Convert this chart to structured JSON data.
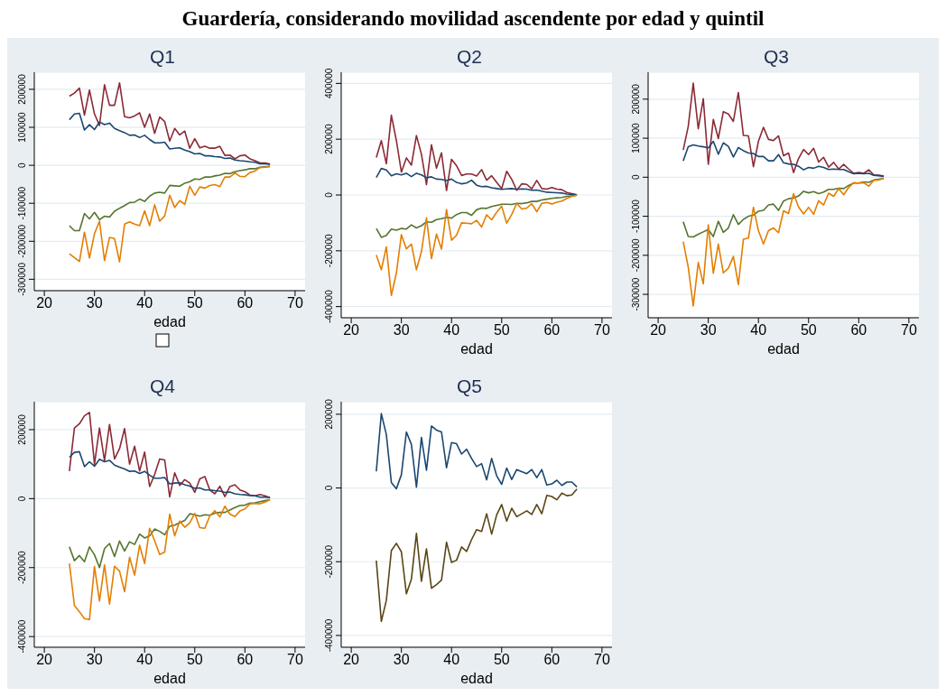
{
  "chart_data": [
    {
      "type": "line",
      "title": "Q1",
      "xlabel": "edad",
      "annotations": [
        "Guardería, considerando movilidad ascendente por edad y quintil"
      ],
      "x": [
        25,
        26,
        27,
        28,
        29,
        30,
        31,
        32,
        33,
        34,
        35,
        36,
        37,
        38,
        39,
        40,
        41,
        42,
        43,
        44,
        45,
        46,
        47,
        48,
        49,
        50,
        51,
        52,
        53,
        54,
        55,
        56,
        57,
        58,
        59,
        60,
        61,
        62,
        63,
        64,
        65
      ],
      "xlim": [
        18,
        72
      ],
      "xticks": [
        20,
        30,
        40,
        50,
        60,
        70
      ],
      "ylim": [
        -330000,
        245000
      ],
      "yticks": [
        -300000,
        -200000,
        -100000,
        0,
        100000,
        200000
      ],
      "grid": "y",
      "series": [
        {
          "color": "#8b2a35",
          "values": [
            182000,
            190000,
            203000,
            132000,
            198000,
            135000,
            105000,
            212000,
            158000,
            158000,
            217000,
            128000,
            125000,
            130000,
            138000,
            100000,
            135000,
            84000,
            127000,
            115000,
            64000,
            97000,
            80000,
            90000,
            45000,
            70000,
            46000,
            50000,
            45000,
            45000,
            50000,
            26000,
            27000,
            17000,
            25000,
            27000,
            17000,
            12000,
            6000,
            6000,
            3000
          ]
        },
        {
          "color": "#1a476f",
          "values": [
            120000,
            135000,
            137000,
            93000,
            107000,
            94000,
            114000,
            107000,
            111000,
            97000,
            91000,
            86000,
            79000,
            80000,
            73000,
            79000,
            68000,
            59000,
            59000,
            61000,
            43000,
            45000,
            46000,
            40000,
            36000,
            30000,
            31000,
            25000,
            25000,
            23000,
            22000,
            18000,
            19000,
            14000,
            12000,
            11000,
            9000,
            8000,
            4000,
            4000,
            3000
          ]
        },
        {
          "color": "#55752f",
          "values": [
            -159000,
            -172000,
            -172000,
            -127000,
            -141000,
            -124000,
            -143000,
            -134000,
            -136000,
            -121000,
            -113000,
            -106000,
            -98000,
            -97000,
            -89000,
            -95000,
            -81000,
            -73000,
            -71000,
            -73000,
            -53000,
            -54000,
            -55000,
            -47000,
            -43000,
            -36000,
            -37000,
            -31000,
            -31000,
            -28000,
            -26000,
            -21000,
            -22000,
            -17000,
            -14000,
            -12000,
            -9000,
            -9000,
            -5000,
            -4000,
            -3000
          ]
        },
        {
          "color": "#e37e00",
          "values": [
            -233000,
            -243000,
            -253000,
            -176000,
            -244000,
            -180000,
            -147000,
            -251000,
            -190000,
            -193000,
            -254000,
            -155000,
            -149000,
            -155000,
            -159000,
            -120000,
            -159000,
            -104000,
            -147000,
            -133000,
            -79000,
            -111000,
            -93000,
            -103000,
            -55000,
            -79000,
            -57000,
            -60000,
            -53000,
            -51000,
            -56000,
            -31000,
            -31000,
            -20000,
            -29000,
            -30000,
            -19000,
            -15000,
            -6000,
            -5000,
            -3000
          ]
        }
      ]
    },
    {
      "type": "line",
      "title": "Q2",
      "xlabel": "edad",
      "x": [
        25,
        26,
        27,
        28,
        29,
        30,
        31,
        32,
        33,
        34,
        35,
        36,
        37,
        38,
        39,
        40,
        41,
        42,
        43,
        44,
        45,
        46,
        47,
        48,
        49,
        50,
        51,
        52,
        53,
        54,
        55,
        56,
        57,
        58,
        59,
        60,
        61,
        62,
        63,
        64,
        65
      ],
      "xlim": [
        18,
        72
      ],
      "xticks": [
        20,
        30,
        40,
        50,
        60,
        70
      ],
      "ylim": [
        -440000,
        440000
      ],
      "yticks": [
        -400000,
        -200000,
        0,
        200000,
        400000
      ],
      "grid": "y",
      "series": [
        {
          "color": "#8b2a35",
          "values": [
            134000,
            195000,
            112000,
            286000,
            195000,
            82000,
            133000,
            107000,
            213000,
            146000,
            37000,
            180000,
            96000,
            151000,
            16000,
            128000,
            105000,
            70000,
            75000,
            75000,
            68000,
            91000,
            53000,
            69000,
            45000,
            23000,
            85000,
            56000,
            17000,
            40000,
            38000,
            22000,
            52000,
            23000,
            21000,
            27000,
            21000,
            19000,
            9000,
            5000,
            1000
          ]
        },
        {
          "color": "#1a476f",
          "values": [
            63000,
            95000,
            90000,
            69000,
            76000,
            72000,
            78000,
            66000,
            78000,
            72000,
            62000,
            65000,
            57000,
            56000,
            52000,
            57000,
            45000,
            40000,
            43000,
            53000,
            35000,
            30000,
            31000,
            26000,
            23000,
            20000,
            22000,
            23000,
            20000,
            22000,
            21000,
            17000,
            18000,
            14000,
            10000,
            9000,
            8000,
            7000,
            3000,
            2000,
            1000
          ]
        },
        {
          "color": "#55752f",
          "values": [
            -120000,
            -152000,
            -145000,
            -122000,
            -126000,
            -120000,
            -122000,
            -107000,
            -118000,
            -110000,
            -96000,
            -98000,
            -88000,
            -85000,
            -80000,
            -83000,
            -70000,
            -63000,
            -63000,
            -73000,
            -53000,
            -47000,
            -48000,
            -41000,
            -37000,
            -33000,
            -33000,
            -34000,
            -30000,
            -31000,
            -28000,
            -23000,
            -23000,
            -18000,
            -15000,
            -12000,
            -10000,
            -9000,
            -5000,
            -3000,
            -1000
          ]
        },
        {
          "color": "#e37e00",
          "values": [
            -215000,
            -268000,
            -186000,
            -360000,
            -280000,
            -142000,
            -193000,
            -176000,
            -268000,
            -203000,
            -82000,
            -228000,
            -140000,
            -194000,
            -52000,
            -162000,
            -144000,
            -100000,
            -101000,
            -103000,
            -91000,
            -115000,
            -71000,
            -89000,
            -62000,
            -40000,
            -101000,
            -70000,
            -30000,
            -50000,
            -47000,
            -31000,
            -60000,
            -30000,
            -27000,
            -32000,
            -26000,
            -22000,
            -12000,
            -5000,
            -1000
          ]
        }
      ]
    },
    {
      "type": "line",
      "title": "Q3",
      "xlabel": "edad",
      "x": [
        25,
        26,
        27,
        28,
        29,
        30,
        31,
        32,
        33,
        34,
        35,
        36,
        37,
        38,
        39,
        40,
        41,
        42,
        43,
        44,
        45,
        46,
        47,
        48,
        49,
        50,
        51,
        52,
        53,
        54,
        55,
        56,
        57,
        58,
        59,
        60,
        61,
        62,
        63,
        64,
        65
      ],
      "xlim": [
        18,
        72
      ],
      "xticks": [
        20,
        30,
        40,
        50,
        60,
        70
      ],
      "ylim": [
        -360000,
        269000
      ],
      "yticks": [
        -300000,
        -200000,
        -100000,
        0,
        100000,
        200000
      ],
      "grid": "y",
      "series": [
        {
          "color": "#8b2a35",
          "values": [
            70000,
            130000,
            241000,
            124000,
            201000,
            33000,
            148000,
            99000,
            168000,
            162000,
            143000,
            217000,
            107000,
            106000,
            27000,
            92000,
            128000,
            97000,
            94000,
            106000,
            55000,
            62000,
            12000,
            48000,
            71000,
            58000,
            74000,
            39000,
            51000,
            26000,
            38000,
            21000,
            33000,
            21000,
            10000,
            12000,
            10000,
            19000,
            6000,
            5000,
            3000
          ]
        },
        {
          "color": "#1a476f",
          "values": [
            42000,
            78000,
            83000,
            80000,
            78000,
            75000,
            92000,
            59000,
            88000,
            79000,
            52000,
            76000,
            68000,
            62000,
            61000,
            53000,
            53000,
            42000,
            42000,
            58000,
            37000,
            34000,
            33000,
            28000,
            19000,
            25000,
            23000,
            28000,
            25000,
            20000,
            21000,
            20000,
            20000,
            14000,
            9000,
            10000,
            9000,
            10000,
            5000,
            4000,
            2000
          ]
        },
        {
          "color": "#55752f",
          "values": [
            -114000,
            -152000,
            -153000,
            -146000,
            -140000,
            -134000,
            -152000,
            -113000,
            -141000,
            -130000,
            -96000,
            -121000,
            -108000,
            -100000,
            -97000,
            -87000,
            -85000,
            -71000,
            -69000,
            -85000,
            -61000,
            -55000,
            -53000,
            -48000,
            -36000,
            -40000,
            -37000,
            -42000,
            -38000,
            -31000,
            -31000,
            -28000,
            -29000,
            -21000,
            -15000,
            -15000,
            -12000,
            -13000,
            -7000,
            -5000,
            -3000
          ]
        },
        {
          "color": "#e37e00",
          "values": [
            -165000,
            -230000,
            -330000,
            -218000,
            -273000,
            -122000,
            -246000,
            -171000,
            -245000,
            -233000,
            -203000,
            -275000,
            -159000,
            -156000,
            -77000,
            -137000,
            -171000,
            -137000,
            -130000,
            -142000,
            -86000,
            -93000,
            -42000,
            -76000,
            -94000,
            -77000,
            -95000,
            -60000,
            -71000,
            -41000,
            -49000,
            -29000,
            -45000,
            -26000,
            -14000,
            -15000,
            -14000,
            -23000,
            -8000,
            -7000,
            -3000
          ]
        }
      ]
    },
    {
      "type": "line",
      "title": "Q4",
      "xlabel": "edad",
      "x": [
        25,
        26,
        27,
        28,
        29,
        30,
        31,
        32,
        33,
        34,
        35,
        36,
        37,
        38,
        39,
        40,
        41,
        42,
        43,
        44,
        45,
        46,
        47,
        48,
        49,
        50,
        51,
        52,
        53,
        54,
        55,
        56,
        57,
        58,
        59,
        60,
        61,
        62,
        63,
        64,
        65
      ],
      "xlim": [
        18,
        72
      ],
      "xticks": [
        20,
        30,
        40,
        50,
        60,
        70
      ],
      "ylim": [
        -431000,
        281000
      ],
      "yticks": [
        -400000,
        -200000,
        0,
        200000
      ],
      "grid": "y",
      "series": [
        {
          "color": "#8b2a35",
          "values": [
            80000,
            205000,
            217000,
            240000,
            250000,
            100000,
            205000,
            110000,
            215000,
            115000,
            145000,
            203000,
            100000,
            152000,
            80000,
            135000,
            35000,
            70000,
            115000,
            112000,
            5000,
            75000,
            38000,
            55000,
            45000,
            18000,
            57000,
            64000,
            25000,
            14000,
            36000,
            6000,
            35000,
            40000,
            25000,
            20000,
            10000,
            8000,
            12000,
            8000,
            3000
          ]
        },
        {
          "color": "#1a476f",
          "values": [
            120000,
            134000,
            136000,
            93000,
            107000,
            94000,
            114000,
            107000,
            111000,
            97000,
            91000,
            86000,
            79000,
            80000,
            73000,
            79000,
            68000,
            59000,
            59000,
            61000,
            43000,
            45000,
            46000,
            40000,
            36000,
            30000,
            31000,
            25000,
            25000,
            23000,
            22000,
            18000,
            19000,
            14000,
            12000,
            11000,
            9000,
            8000,
            4000,
            4000,
            3000
          ]
        },
        {
          "color": "#55752f",
          "values": [
            -140000,
            -180000,
            -165000,
            -183000,
            -140000,
            -163000,
            -200000,
            -145000,
            -130000,
            -168000,
            -123000,
            -152000,
            -125000,
            -133000,
            -103000,
            -114000,
            -108000,
            -88000,
            -95000,
            -105000,
            -80000,
            -77000,
            -70000,
            -63000,
            -44000,
            -47000,
            -51000,
            -47000,
            -48000,
            -42000,
            -40000,
            -40000,
            -33000,
            -26000,
            -20000,
            -19000,
            -13000,
            -12000,
            -9000,
            -6000,
            -3000
          ]
        },
        {
          "color": "#e37e00",
          "values": [
            -188000,
            -310000,
            -328000,
            -348000,
            -351000,
            -197000,
            -297000,
            -192000,
            -306000,
            -196000,
            -210000,
            -270000,
            -170000,
            -222000,
            -135000,
            -188000,
            -86000,
            -122000,
            -162000,
            -155000,
            -45000,
            -108000,
            -65000,
            -83000,
            -70000,
            -43000,
            -84000,
            -86000,
            -50000,
            -35000,
            -53000,
            -22000,
            -45000,
            -52000,
            -36000,
            -30000,
            -15000,
            -14000,
            -15000,
            -10000,
            -3000
          ]
        }
      ]
    },
    {
      "type": "line",
      "title": "Q5",
      "xlabel": "edad",
      "x": [
        25,
        26,
        27,
        28,
        29,
        30,
        31,
        32,
        33,
        34,
        35,
        36,
        37,
        38,
        39,
        40,
        41,
        42,
        43,
        44,
        45,
        46,
        47,
        48,
        49,
        50,
        51,
        52,
        53,
        54,
        55,
        56,
        57,
        58,
        59,
        60,
        61,
        62,
        63,
        64,
        65
      ],
      "xlim": [
        18,
        72
      ],
      "xticks": [
        20,
        30,
        40,
        50,
        60,
        70
      ],
      "ylim": [
        -432000,
        234000
      ],
      "yticks": [
        -400000,
        -200000,
        0,
        200000
      ],
      "grid": "y",
      "series": [
        {
          "color": "#1a476f",
          "values": [
            45000,
            202000,
            145000,
            15000,
            -2000,
            36000,
            152000,
            118000,
            2000,
            137000,
            48000,
            168000,
            157000,
            152000,
            55000,
            123000,
            120000,
            92000,
            105000,
            80000,
            58000,
            66000,
            22000,
            80000,
            33000,
            10000,
            54000,
            23000,
            50000,
            44000,
            39000,
            50000,
            28000,
            50000,
            8000,
            11000,
            21000,
            7000,
            16000,
            16000,
            3000
          ]
        },
        {
          "color": "#5a4515",
          "values": [
            -197000,
            -362000,
            -305000,
            -170000,
            -150000,
            -173000,
            -287000,
            -247000,
            -123000,
            -253000,
            -165000,
            -272000,
            -262000,
            -250000,
            -147000,
            -202000,
            -196000,
            -160000,
            -172000,
            -140000,
            -113000,
            -118000,
            -70000,
            -125000,
            -73000,
            -45000,
            -90000,
            -55000,
            -78000,
            -70000,
            -62000,
            -72000,
            -45000,
            -70000,
            -20000,
            -23000,
            -32000,
            -14000,
            -21000,
            -19000,
            -3000
          ]
        }
      ]
    }
  ]
}
